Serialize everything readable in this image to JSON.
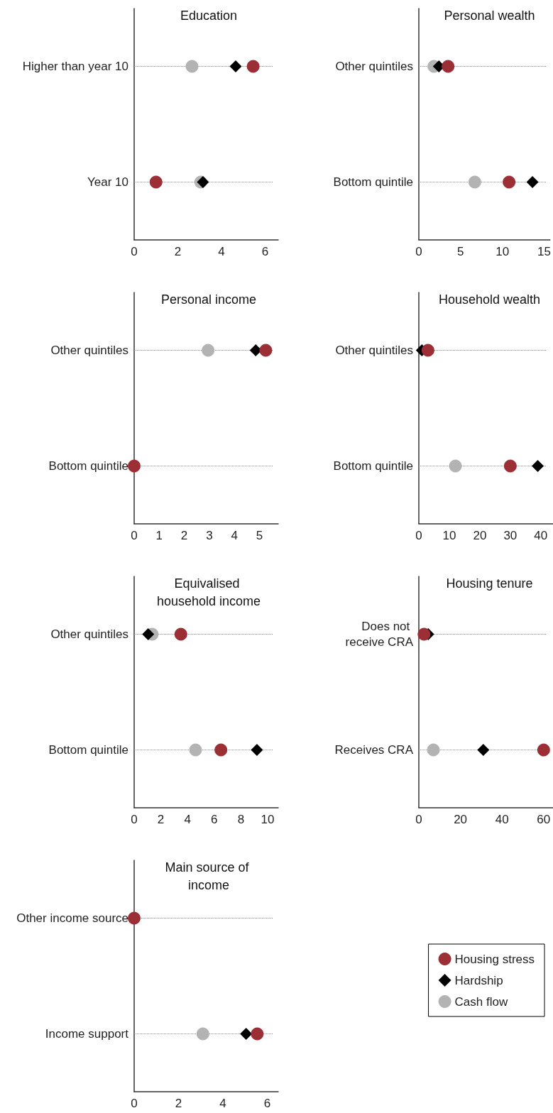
{
  "chart_data": [
    {
      "type": "scatter",
      "orientation": "horizontal",
      "title": "Education",
      "categories": [
        "Higher than year 10",
        "Year 10"
      ],
      "xlim": [
        0,
        6.6
      ],
      "xticks": [
        0,
        2,
        4,
        6
      ],
      "grid": "y",
      "legend": false,
      "series": [
        {
          "color": "#9b2f35",
          "marker": "circle",
          "values": [
            5.45,
            1.0
          ]
        },
        {
          "color": "#000000",
          "marker": "diamond",
          "values": [
            4.65,
            3.15
          ]
        },
        {
          "color": "#b3b3b3",
          "marker": "circle",
          "values": [
            2.65,
            3.05
          ]
        }
      ]
    },
    {
      "type": "scatter",
      "orientation": "horizontal",
      "title": "Personal wealth",
      "categories": [
        "Other quintiles",
        "Bottom quintile"
      ],
      "xlim": [
        0,
        15.7
      ],
      "xticks": [
        0,
        5,
        10,
        15
      ],
      "grid": "y",
      "legend": false,
      "series": [
        {
          "color": "#9b2f35",
          "marker": "circle",
          "values": [
            3.5,
            10.8
          ]
        },
        {
          "color": "#000000",
          "marker": "diamond",
          "values": [
            2.4,
            13.6
          ]
        },
        {
          "color": "#b3b3b3",
          "marker": "circle",
          "values": [
            1.8,
            6.7
          ]
        }
      ]
    },
    {
      "type": "scatter",
      "orientation": "horizontal",
      "title": "Personal income",
      "categories": [
        "Other quintiles",
        "Bottom quintile"
      ],
      "xlim": [
        0,
        5.75
      ],
      "xticks": [
        0,
        1,
        2,
        3,
        4,
        5
      ],
      "grid": "y",
      "legend": false,
      "series": [
        {
          "color": "#9b2f35",
          "marker": "circle",
          "values": [
            5.25,
            0
          ]
        },
        {
          "color": "#000000",
          "marker": "diamond",
          "values": [
            4.85,
            null
          ]
        },
        {
          "color": "#b3b3b3",
          "marker": "circle",
          "values": [
            2.95,
            null
          ]
        }
      ]
    },
    {
      "type": "scatter",
      "orientation": "horizontal",
      "title": "Household wealth",
      "categories": [
        "Other quintiles",
        "Bottom quintile"
      ],
      "xlim": [
        0,
        44
      ],
      "xticks": [
        0,
        10,
        20,
        30,
        40
      ],
      "grid": "y",
      "legend": false,
      "series": [
        {
          "color": "#9b2f35",
          "marker": "circle",
          "values": [
            3,
            30
          ]
        },
        {
          "color": "#000000",
          "marker": "diamond",
          "values": [
            1,
            39
          ]
        },
        {
          "color": "#b3b3b3",
          "marker": "circle",
          "values": [
            null,
            12
          ]
        }
      ]
    },
    {
      "type": "scatter",
      "orientation": "horizontal",
      "title": "Equivalised household income",
      "categories": [
        "Other quintiles",
        "Bottom quintile"
      ],
      "xlim": [
        0,
        10.8
      ],
      "xticks": [
        0,
        2,
        4,
        6,
        8,
        10
      ],
      "grid": "y",
      "legend": false,
      "series": [
        {
          "color": "#9b2f35",
          "marker": "circle",
          "values": [
            3.5,
            6.5
          ]
        },
        {
          "color": "#000000",
          "marker": "diamond",
          "values": [
            1.05,
            9.2
          ]
        },
        {
          "color": "#b3b3b3",
          "marker": "circle",
          "values": [
            1.35,
            4.6
          ]
        }
      ]
    },
    {
      "type": "scatter",
      "orientation": "horizontal",
      "title": "Housing tenure",
      "categories": [
        "Does not receive CRA",
        "Receives CRA"
      ],
      "xlim": [
        0,
        64.5
      ],
      "xticks": [
        0,
        20,
        40,
        60
      ],
      "grid": "y",
      "legend": false,
      "series": [
        {
          "color": "#9b2f35",
          "marker": "circle",
          "values": [
            2.5,
            60
          ]
        },
        {
          "color": "#000000",
          "marker": "diamond",
          "values": [
            4.5,
            31
          ]
        },
        {
          "color": "#b3b3b3",
          "marker": "circle",
          "values": [
            null,
            7
          ]
        }
      ]
    },
    {
      "type": "scatter",
      "orientation": "horizontal",
      "title": "Main source of income",
      "categories": [
        "Other income source",
        "Income support"
      ],
      "xlim": [
        0,
        6.5
      ],
      "xticks": [
        0,
        2,
        4,
        6
      ],
      "grid": "y",
      "legend": "right",
      "series": [
        {
          "name": "Housing stress",
          "color": "#9b2f35",
          "marker": "circle",
          "values": [
            0,
            5.55
          ]
        },
        {
          "name": "Hardship",
          "color": "#000000",
          "marker": "diamond",
          "values": [
            null,
            5.05
          ]
        },
        {
          "name": "Cash flow",
          "color": "#b3b3b3",
          "marker": "circle",
          "values": [
            null,
            3.1
          ]
        }
      ]
    }
  ]
}
